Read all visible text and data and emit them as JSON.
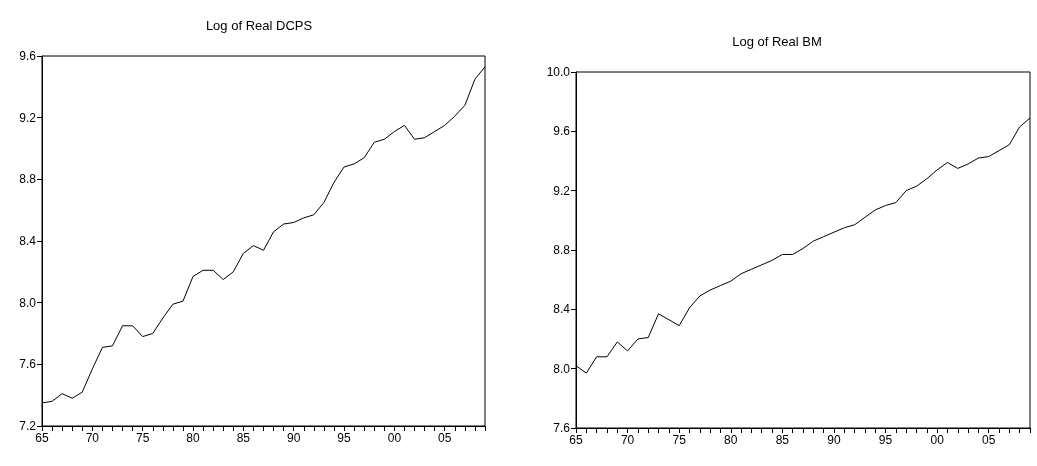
{
  "chart_data": [
    {
      "type": "line",
      "title": "Log of Real DCPS",
      "xlim": [
        1965,
        2009
      ],
      "ylim": [
        7.2,
        9.6
      ],
      "yticks": [
        {
          "value": 7.2,
          "label": "7.2"
        },
        {
          "value": 7.6,
          "label": "7.6"
        },
        {
          "value": 8.0,
          "label": "8.0"
        },
        {
          "value": 8.4,
          "label": "8.4"
        },
        {
          "value": 8.8,
          "label": "8.8"
        },
        {
          "value": 9.2,
          "label": "9.2"
        },
        {
          "value": 9.6,
          "label": "9.6"
        }
      ],
      "grid": false,
      "color": "#000000",
      "xticks": [
        {
          "value": 1965,
          "label": "65"
        },
        {
          "value": 1966,
          "label": null
        },
        {
          "value": 1967,
          "label": null
        },
        {
          "value": 1968,
          "label": null
        },
        {
          "value": 1969,
          "label": null
        },
        {
          "value": 1970,
          "label": "70"
        },
        {
          "value": 1971,
          "label": null
        },
        {
          "value": 1972,
          "label": null
        },
        {
          "value": 1973,
          "label": null
        },
        {
          "value": 1974,
          "label": null
        },
        {
          "value": 1975,
          "label": "75"
        },
        {
          "value": 1976,
          "label": null
        },
        {
          "value": 1977,
          "label": null
        },
        {
          "value": 1978,
          "label": null
        },
        {
          "value": 1979,
          "label": null
        },
        {
          "value": 1980,
          "label": "80"
        },
        {
          "value": 1981,
          "label": null
        },
        {
          "value": 1982,
          "label": null
        },
        {
          "value": 1983,
          "label": null
        },
        {
          "value": 1984,
          "label": null
        },
        {
          "value": 1985,
          "label": "85"
        },
        {
          "value": 1986,
          "label": null
        },
        {
          "value": 1987,
          "label": null
        },
        {
          "value": 1988,
          "label": null
        },
        {
          "value": 1989,
          "label": null
        },
        {
          "value": 1990,
          "label": "90"
        },
        {
          "value": 1991,
          "label": null
        },
        {
          "value": 1992,
          "label": null
        },
        {
          "value": 1993,
          "label": null
        },
        {
          "value": 1994,
          "label": null
        },
        {
          "value": 1995,
          "label": "95"
        },
        {
          "value": 1996,
          "label": null
        },
        {
          "value": 1997,
          "label": null
        },
        {
          "value": 1998,
          "label": null
        },
        {
          "value": 1999,
          "label": null
        },
        {
          "value": 2000,
          "label": "00"
        },
        {
          "value": 2001,
          "label": null
        },
        {
          "value": 2002,
          "label": null
        },
        {
          "value": 2003,
          "label": null
        },
        {
          "value": 2004,
          "label": null
        },
        {
          "value": 2005,
          "label": "05"
        },
        {
          "value": 2006,
          "label": null
        },
        {
          "value": 2007,
          "label": null
        },
        {
          "value": 2008,
          "label": null
        },
        {
          "value": 2009,
          "label": null
        }
      ],
      "x": [
        1965,
        1966,
        1967,
        1968,
        1969,
        1970,
        1971,
        1972,
        1973,
        1974,
        1975,
        1976,
        1977,
        1978,
        1979,
        1980,
        1981,
        1982,
        1983,
        1984,
        1985,
        1986,
        1987,
        1988,
        1989,
        1990,
        1991,
        1992,
        1993,
        1994,
        1995,
        1996,
        1997,
        1998,
        1999,
        2000,
        2001,
        2002,
        2003,
        2004,
        2005,
        2006,
        2007,
        2008,
        2009
      ],
      "values": [
        7.35,
        7.36,
        7.41,
        7.38,
        7.42,
        7.57,
        7.71,
        7.72,
        7.85,
        7.85,
        7.78,
        7.8,
        7.9,
        7.99,
        8.01,
        8.17,
        8.21,
        8.21,
        8.15,
        8.2,
        8.32,
        8.37,
        8.34,
        8.46,
        8.51,
        8.52,
        8.55,
        8.57,
        8.65,
        8.78,
        8.88,
        8.9,
        8.94,
        9.04,
        9.06,
        9.11,
        9.15,
        9.06,
        9.07,
        9.11,
        9.15,
        9.21,
        9.28,
        9.45,
        9.53
      ]
    },
    {
      "type": "line",
      "title": "Log of Real BM",
      "xlim": [
        1965,
        2009
      ],
      "ylim": [
        7.6,
        10.0
      ],
      "yticks": [
        {
          "value": 7.6,
          "label": "7.6"
        },
        {
          "value": 8.0,
          "label": "8.0"
        },
        {
          "value": 8.4,
          "label": "8.4"
        },
        {
          "value": 8.8,
          "label": "8.8"
        },
        {
          "value": 9.2,
          "label": "9.2"
        },
        {
          "value": 9.6,
          "label": "9.6"
        },
        {
          "value": 10.0,
          "label": "10.0"
        }
      ],
      "grid": false,
      "color": "#000000",
      "xticks": [
        {
          "value": 1965,
          "label": "65"
        },
        {
          "value": 1966,
          "label": null
        },
        {
          "value": 1967,
          "label": null
        },
        {
          "value": 1968,
          "label": null
        },
        {
          "value": 1969,
          "label": null
        },
        {
          "value": 1970,
          "label": "70"
        },
        {
          "value": 1971,
          "label": null
        },
        {
          "value": 1972,
          "label": null
        },
        {
          "value": 1973,
          "label": null
        },
        {
          "value": 1974,
          "label": null
        },
        {
          "value": 1975,
          "label": "75"
        },
        {
          "value": 1976,
          "label": null
        },
        {
          "value": 1977,
          "label": null
        },
        {
          "value": 1978,
          "label": null
        },
        {
          "value": 1979,
          "label": null
        },
        {
          "value": 1980,
          "label": "80"
        },
        {
          "value": 1981,
          "label": null
        },
        {
          "value": 1982,
          "label": null
        },
        {
          "value": 1983,
          "label": null
        },
        {
          "value": 1984,
          "label": null
        },
        {
          "value": 1985,
          "label": "85"
        },
        {
          "value": 1986,
          "label": null
        },
        {
          "value": 1987,
          "label": null
        },
        {
          "value": 1988,
          "label": null
        },
        {
          "value": 1989,
          "label": null
        },
        {
          "value": 1990,
          "label": "90"
        },
        {
          "value": 1991,
          "label": null
        },
        {
          "value": 1992,
          "label": null
        },
        {
          "value": 1993,
          "label": null
        },
        {
          "value": 1994,
          "label": null
        },
        {
          "value": 1995,
          "label": "95"
        },
        {
          "value": 1996,
          "label": null
        },
        {
          "value": 1997,
          "label": null
        },
        {
          "value": 1998,
          "label": null
        },
        {
          "value": 1999,
          "label": null
        },
        {
          "value": 2000,
          "label": "00"
        },
        {
          "value": 2001,
          "label": null
        },
        {
          "value": 2002,
          "label": null
        },
        {
          "value": 2003,
          "label": null
        },
        {
          "value": 2004,
          "label": null
        },
        {
          "value": 2005,
          "label": "05"
        },
        {
          "value": 2006,
          "label": null
        },
        {
          "value": 2007,
          "label": null
        },
        {
          "value": 2008,
          "label": null
        },
        {
          "value": 2009,
          "label": null
        }
      ],
      "x": [
        1965,
        1966,
        1967,
        1968,
        1969,
        1970,
        1971,
        1972,
        1973,
        1974,
        1975,
        1976,
        1977,
        1978,
        1979,
        1980,
        1981,
        1982,
        1983,
        1984,
        1985,
        1986,
        1987,
        1988,
        1989,
        1990,
        1991,
        1992,
        1993,
        1994,
        1995,
        1996,
        1997,
        1998,
        1999,
        2000,
        2001,
        2002,
        2003,
        2004,
        2005,
        2006,
        2007,
        2008,
        2009
      ],
      "values": [
        8.02,
        7.97,
        8.08,
        8.08,
        8.18,
        8.12,
        8.2,
        8.21,
        8.37,
        8.33,
        8.29,
        8.41,
        8.49,
        8.53,
        8.56,
        8.59,
        8.64,
        8.67,
        8.7,
        8.73,
        8.77,
        8.77,
        8.81,
        8.86,
        8.89,
        8.92,
        8.95,
        8.97,
        9.02,
        9.07,
        9.1,
        9.12,
        9.2,
        9.23,
        9.28,
        9.34,
        9.39,
        9.35,
        9.38,
        9.42,
        9.43,
        9.47,
        9.51,
        9.63,
        9.69
      ]
    }
  ]
}
